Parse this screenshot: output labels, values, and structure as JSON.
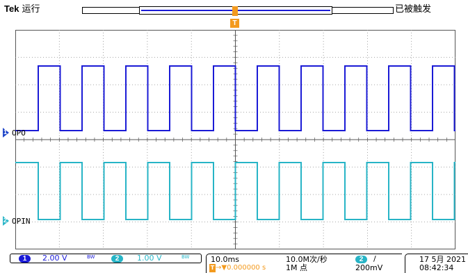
{
  "header": {
    "brand": "Tek",
    "run_state": "运行",
    "trigger_status": "已被触发"
  },
  "trigger_marker": "T",
  "channels": [
    {
      "id": "1",
      "label": "OPO",
      "color": "#2147c9"
    },
    {
      "id": "2",
      "label": "OPIN",
      "color": "#2cb6c8"
    }
  ],
  "status": {
    "ch1_num": "1",
    "ch1_scale": "2.00 V",
    "ch1_bw": "BW",
    "ch2_num": "2",
    "ch2_scale": "1.00 V",
    "ch2_bw": "BW",
    "timebase": "10.0ms",
    "trigger_position": "0.000000 s",
    "sample_rate": "10.0M次/秒",
    "record_length": "1M 点",
    "trigger_source": "2",
    "trigger_slope": "/",
    "trigger_level": "200mV",
    "date": "17 5月 2021",
    "time": "08:42:34"
  },
  "colors": {
    "ch1": "#1a1ad6",
    "ch2": "#27b4c6",
    "trigger": "#f39a1e",
    "grid": "#8a8a8a"
  }
}
